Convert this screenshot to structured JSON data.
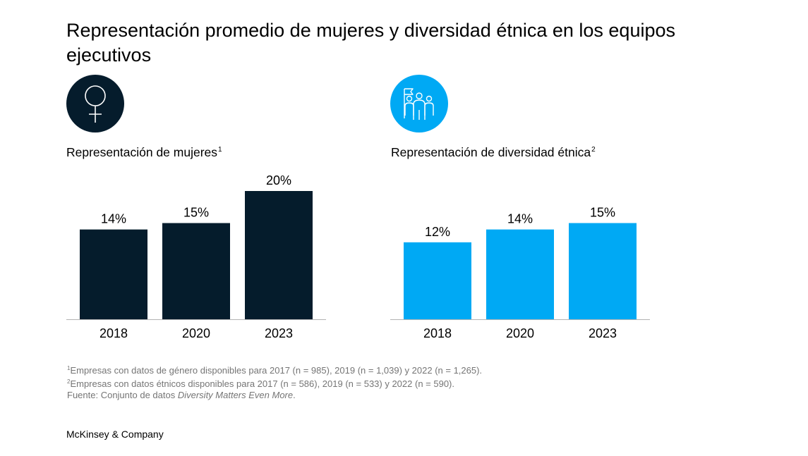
{
  "title": "Representación promedio de mujeres y diversidad étnica en los equipos ejecutivos",
  "icons": {
    "left": {
      "name": "female-symbol-icon",
      "bg": "#051c2c"
    },
    "right": {
      "name": "diverse-team-flag-icon",
      "bg": "#00a9f4"
    }
  },
  "chart_data": [
    {
      "type": "bar",
      "title": "Representación de mujeres",
      "footnote_ref": "1",
      "categories": [
        "2018",
        "2020",
        "2023"
      ],
      "values": [
        14,
        15,
        20
      ],
      "value_labels": [
        "14%",
        "15%",
        "20%"
      ],
      "unit": "%",
      "ylim": [
        0,
        20
      ],
      "color": "#051c2c",
      "grid": false,
      "legend": "none"
    },
    {
      "type": "bar",
      "title": "Representación de diversidad étnica",
      "footnote_ref": "2",
      "categories": [
        "2018",
        "2020",
        "2023"
      ],
      "values": [
        12,
        14,
        15
      ],
      "value_labels": [
        "12%",
        "14%",
        "15%"
      ],
      "unit": "%",
      "ylim": [
        0,
        20
      ],
      "color": "#00a9f4",
      "grid": false,
      "legend": "none"
    }
  ],
  "footnotes": [
    {
      "ref": "1",
      "text": "Empresas con datos de género disponibles para 2017 (n = 985), 2019 (n = 1,039) y 2022 (n = 1,265)."
    },
    {
      "ref": "2",
      "text": "Empresas con datos étnicos disponibles para 2017 (n = 586), 2019 (n = 533) y 2022 (n = 590)."
    }
  ],
  "source": {
    "prefix": "Fuente: Conjunto de datos ",
    "dataset": "Diversity Matters Even More",
    "suffix": "."
  },
  "brand": "McKinsey & Company"
}
